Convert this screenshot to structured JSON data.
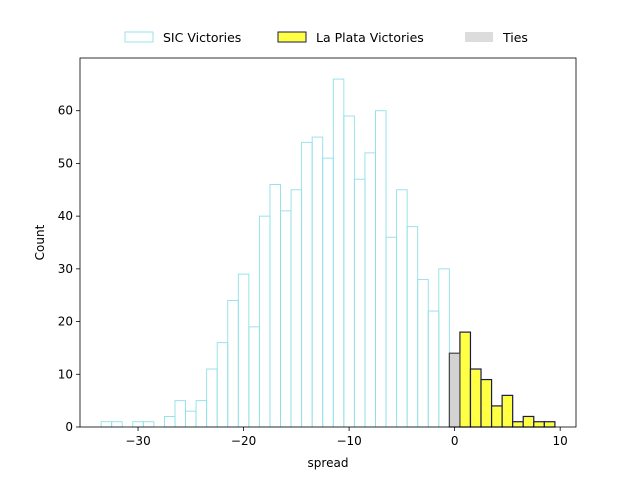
{
  "chart_data": {
    "type": "bar",
    "xlabel": "spread",
    "ylabel": "Count",
    "xlim": [
      -35.5,
      11.5
    ],
    "ylim": [
      0,
      70
    ],
    "xticks": [
      -30,
      -20,
      -10,
      0,
      10
    ],
    "yticks": [
      0,
      10,
      20,
      30,
      40,
      50,
      60
    ],
    "bin_width": 1,
    "legend_position": "top-center, above plot",
    "grid": false,
    "series": [
      {
        "name": "SIC Victories",
        "style": "outline",
        "edge_color": "#8fe0e8",
        "fill_color": "#ffffff",
        "x": [
          -33,
          -32,
          -30,
          -29,
          -27,
          -26,
          -25,
          -24,
          -23,
          -22,
          -21,
          -20,
          -19,
          -18,
          -17,
          -16,
          -15,
          -14,
          -13,
          -12,
          -11,
          -10,
          -9,
          -8,
          -7,
          -6,
          -5,
          -4,
          -3,
          -2,
          -1
        ],
        "values": [
          1,
          1,
          1,
          1,
          2,
          5,
          3,
          5,
          11,
          16,
          24,
          29,
          19,
          40,
          46,
          41,
          45,
          54,
          55,
          51,
          66,
          59,
          47,
          52,
          60,
          36,
          45,
          38,
          28,
          22,
          30
        ]
      },
      {
        "name": "La Plata Victories",
        "style": "filled",
        "edge_color": "#1a1a4e",
        "fill_color": "#ffff44",
        "x": [
          1,
          2,
          3,
          4,
          5,
          6,
          7,
          8,
          9
        ],
        "values": [
          18,
          11,
          9,
          4,
          6,
          1,
          2,
          1,
          1
        ]
      },
      {
        "name": "Ties",
        "style": "filled",
        "edge_color": "#444444",
        "fill_color": "#d3d3d3",
        "x": [
          0
        ],
        "values": [
          14
        ]
      }
    ]
  }
}
